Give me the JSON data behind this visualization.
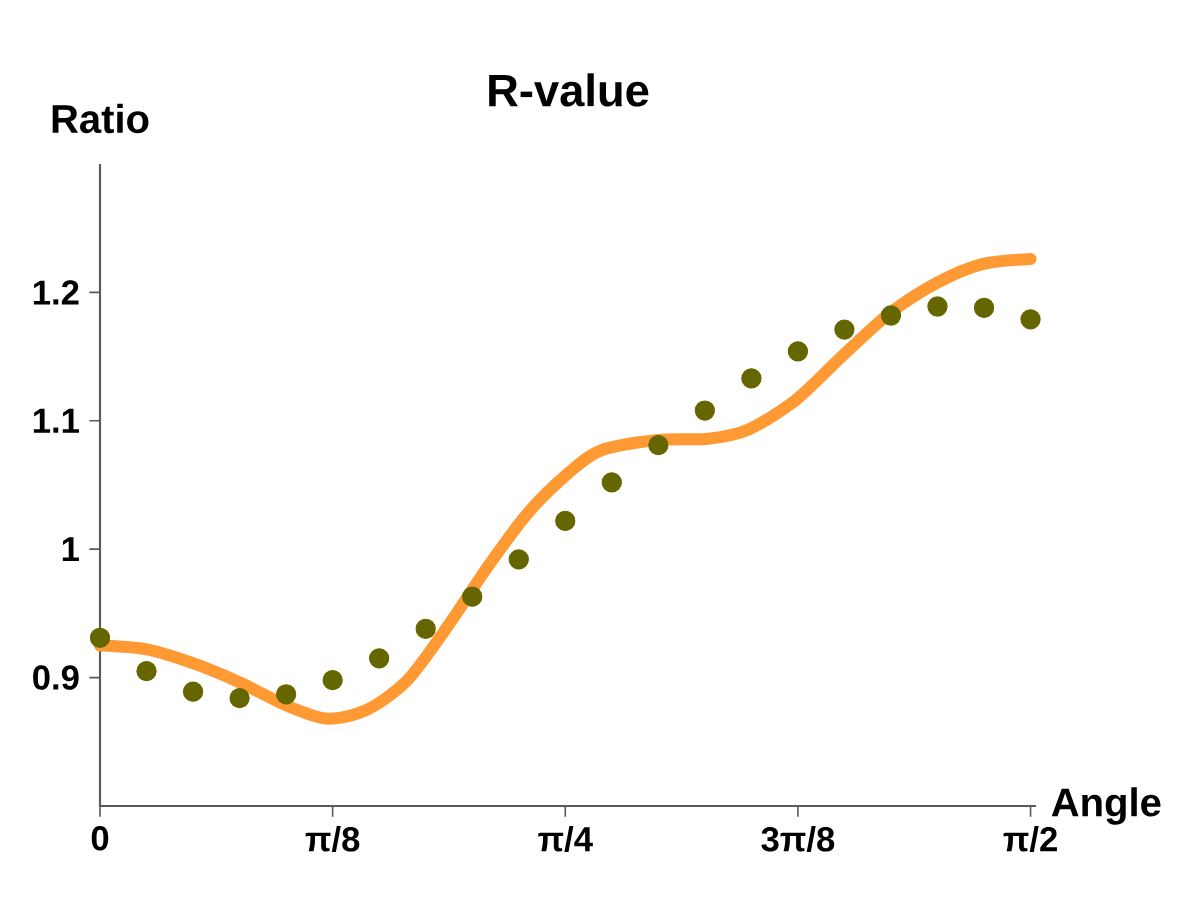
{
  "chart_data": {
    "type": "scatter",
    "title": "R-value",
    "xlabel": "Angle",
    "ylabel": "Ratio",
    "line_style": "solid",
    "xlim": [
      0,
      1.58
    ],
    "ylim": [
      0.8,
      1.3
    ],
    "xticks": [
      {
        "value": 0,
        "label": "0"
      },
      {
        "value": 0.3927,
        "label": "π/8"
      },
      {
        "value": 0.7854,
        "label": "π/4"
      },
      {
        "value": 1.1781,
        "label": "3π/8"
      },
      {
        "value": 1.5708,
        "label": "π/2"
      }
    ],
    "yticks": [
      {
        "value": 0.9,
        "label": "0.9"
      },
      1,
      1.1,
      1.2
    ],
    "series": [
      {
        "type": "line",
        "marker": "none",
        "color": "#ff9933",
        "x": [
          0,
          0.0789,
          0.158,
          0.237,
          0.316,
          0.384,
          0.451,
          0.519,
          0.587,
          0.654,
          0.722,
          0.79,
          0.846,
          0.942,
          1.027,
          1.094,
          1.174,
          1.252,
          1.331,
          1.411,
          1.489,
          1.5708
        ],
        "values": [
          0.925,
          0.922,
          0.911,
          0.896,
          0.878,
          0.868,
          0.875,
          0.898,
          0.94,
          0.986,
          1.028,
          1.059,
          1.077,
          1.085,
          1.086,
          1.093,
          1.116,
          1.15,
          1.183,
          1.207,
          1.222,
          1.226
        ]
      },
      {
        "marker": "circle",
        "color": "#666600",
        "x": [
          0,
          0.0785,
          0.1571,
          0.2356,
          0.3142,
          0.3927,
          0.4712,
          0.5498,
          0.6283,
          0.7069,
          0.7854,
          0.8639,
          0.9425,
          1.021,
          1.0996,
          1.1781,
          1.2566,
          1.3352,
          1.4137,
          1.4923,
          1.5708
        ],
        "values": [
          0.931,
          0.905,
          0.889,
          0.884,
          0.887,
          0.898,
          0.915,
          0.938,
          0.963,
          0.992,
          1.022,
          1.052,
          1.081,
          1.108,
          1.133,
          1.154,
          1.171,
          1.182,
          1.189,
          1.188,
          1.179
        ]
      }
    ]
  }
}
